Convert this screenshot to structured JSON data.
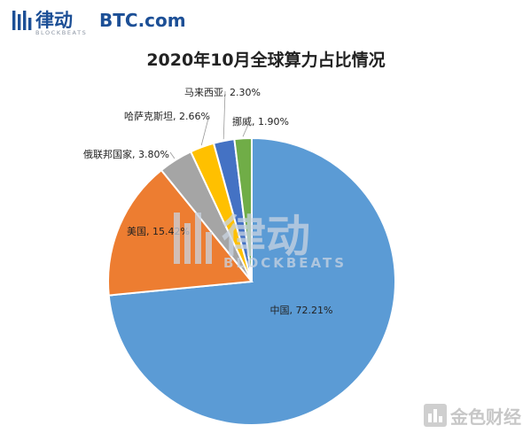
{
  "header": {
    "brand_cn": "律动",
    "brand_en": "BLOCKBEATS",
    "partner": "BTC.com"
  },
  "watermark": {
    "brand_cn": "律动",
    "brand_en": "BLOCKBEATS",
    "corner_brand": "金色财经"
  },
  "colors": {
    "brand_blue": "#1c4f96",
    "brand_gray": "#8c95a3",
    "watermark": "#c9d4e2",
    "corner_watermark": "#c7c7c7"
  },
  "chart_data": {
    "type": "pie",
    "title": "2020年10月全球算力占比情况",
    "start_angle_deg": 0,
    "direction": "clockwise",
    "slices": [
      {
        "label": "中国, 72.21%",
        "name": "中国",
        "value": 72.21,
        "color": "#5b9bd5"
      },
      {
        "label": "美国, 15.42%",
        "name": "美国",
        "value": 15.42,
        "color": "#ed7d31"
      },
      {
        "label": "俄联邦国家, 3.80%",
        "name": "俄联邦国家",
        "value": 3.8,
        "color": "#a5a5a5"
      },
      {
        "label": "哈萨克斯坦, 2.66%",
        "name": "哈萨克斯坦",
        "value": 2.66,
        "color": "#ffc000"
      },
      {
        "label": "马来西亚, 2.30%",
        "name": "马来西亚",
        "value": 2.3,
        "color": "#4472c4"
      },
      {
        "label": "挪威, 1.90%",
        "name": "挪威",
        "value": 1.9,
        "color": "#70ad47"
      }
    ]
  }
}
